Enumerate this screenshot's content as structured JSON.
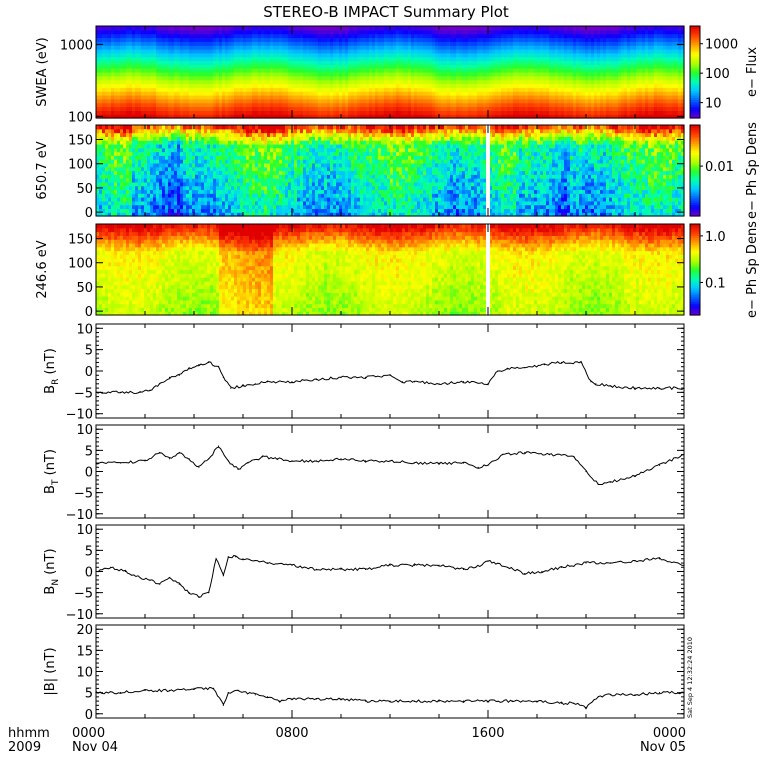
{
  "title": "STEREO-B IMPACT Summary Plot",
  "timestamp": "Sat Sep  4 12:32:24 2010",
  "bottom_axis": {
    "row1_left": "hhmm",
    "row2_left": "2009",
    "ticks": [
      {
        "hour": 0,
        "row1": "0000",
        "row2": "Nov 04"
      },
      {
        "hour": 8,
        "row1": "0800",
        "row2": ""
      },
      {
        "hour": 16,
        "row1": "1600",
        "row2": ""
      },
      {
        "hour": 24,
        "row1": "0000",
        "row2": "Nov 05"
      }
    ]
  },
  "colors": {
    "colormap": [
      "#6f00c8",
      "#0a00ff",
      "#0064ff",
      "#00c8ff",
      "#00ffb4",
      "#28ff28",
      "#b4ff00",
      "#ffff00",
      "#ffa000",
      "#ff4000",
      "#e10000"
    ]
  },
  "chart_data": [
    {
      "type": "heatmap",
      "ylabel": "SWEA (eV)",
      "yscale": "log",
      "ylim": [
        95,
        1800
      ],
      "yticks": [
        {
          "v": 100,
          "label": "100"
        },
        {
          "v": 1000,
          "label": "1000"
        }
      ],
      "xlim": [
        0,
        24
      ],
      "colorbar": {
        "label": "e− Flux",
        "scale": "log",
        "range": [
          3,
          4000
        ],
        "ticks": [
          {
            "v": 10,
            "label": "10"
          },
          {
            "v": 100,
            "label": "100"
          },
          {
            "v": 1000,
            "label": "1000"
          }
        ]
      },
      "pattern": "energy-decreasing"
    },
    {
      "type": "heatmap",
      "ylabel": "650.7 eV",
      "yscale": "linear",
      "ylim": [
        -8,
        180
      ],
      "yticks": [
        {
          "v": 0,
          "label": "0"
        },
        {
          "v": 50,
          "label": "50"
        },
        {
          "v": 100,
          "label": "100"
        },
        {
          "v": 150,
          "label": "150"
        }
      ],
      "xlim": [
        0,
        24
      ],
      "colorbar": {
        "label": "e− Ph Sp Dens",
        "scale": "log",
        "range": [
          0.0008,
          0.08
        ],
        "ticks": [
          {
            "v": 0.01,
            "label": "0.01"
          }
        ]
      },
      "pattern": "pad-high",
      "gap_hour": 16.0
    },
    {
      "type": "heatmap",
      "ylabel": "246.6 eV",
      "yscale": "linear",
      "ylim": [
        -8,
        180
      ],
      "yticks": [
        {
          "v": 0,
          "label": "0"
        },
        {
          "v": 50,
          "label": "50"
        },
        {
          "v": 100,
          "label": "100"
        },
        {
          "v": 150,
          "label": "150"
        }
      ],
      "xlim": [
        0,
        24
      ],
      "colorbar": {
        "label": "e− Ph Sp Dens",
        "scale": "log",
        "range": [
          0.02,
          1.8
        ],
        "ticks": [
          {
            "v": 0.1,
            "label": "0.1"
          },
          {
            "v": 1.0,
            "label": "1.0"
          }
        ]
      },
      "pattern": "pad-low",
      "gap_hour": 16.0
    },
    {
      "type": "line",
      "ylabel": "B",
      "ylabel_sub": "R",
      "ylabel_unit": "(nT)",
      "ylim": [
        -11,
        11
      ],
      "yticks": [
        {
          "v": -10,
          "label": "−10"
        },
        {
          "v": -5,
          "label": "−5"
        },
        {
          "v": 0,
          "label": "0"
        },
        {
          "v": 5,
          "label": "5"
        },
        {
          "v": 10,
          "label": "10"
        }
      ],
      "xlim": [
        0,
        24
      ],
      "x": [
        0,
        1.0,
        1.8,
        2.2,
        2.6,
        3.0,
        3.4,
        3.8,
        4.2,
        4.6,
        5.0,
        5.2,
        5.5,
        6.0,
        6.5,
        7.0,
        8.0,
        9.0,
        10.0,
        11.0,
        12.0,
        12.5,
        13.0,
        14.0,
        15.0,
        16.0,
        16.4,
        16.8,
        17.5,
        18.3,
        19.0,
        19.8,
        20.2,
        20.4,
        21.0,
        22.0,
        23.0,
        24.0
      ],
      "y": [
        -5,
        -5,
        -5,
        -4.5,
        -3,
        -1.5,
        -1,
        0.5,
        1.5,
        2,
        1,
        -1.5,
        -4,
        -3.5,
        -3,
        -2.5,
        -2.5,
        -2,
        -1.5,
        -1.5,
        -1,
        -2.5,
        -2.5,
        -3,
        -2.5,
        -3,
        0,
        0.5,
        0.8,
        1.5,
        2,
        2,
        -2.5,
        -3,
        -3.5,
        -4,
        -4,
        -4
      ]
    },
    {
      "type": "line",
      "ylabel": "B",
      "ylabel_sub": "T",
      "ylabel_unit": "(nT)",
      "ylim": [
        -11,
        11
      ],
      "yticks": [
        {
          "v": -10,
          "label": "−10"
        },
        {
          "v": -5,
          "label": "−5"
        },
        {
          "v": 0,
          "label": "0"
        },
        {
          "v": 5,
          "label": "5"
        },
        {
          "v": 10,
          "label": "10"
        }
      ],
      "xlim": [
        0,
        24
      ],
      "x": [
        0,
        1.0,
        2.0,
        2.6,
        3.0,
        3.4,
        3.8,
        4.2,
        4.6,
        5.0,
        5.4,
        5.8,
        6.2,
        6.8,
        7.4,
        8.0,
        9.0,
        10.0,
        11.0,
        12.0,
        13.0,
        14.0,
        15.0,
        15.6,
        16.0,
        16.6,
        17.5,
        18.5,
        19.5,
        20.0,
        20.5,
        21.0,
        22.0,
        23.0,
        24.0
      ],
      "y": [
        2,
        2,
        2.5,
        4.5,
        3,
        4.5,
        3,
        1,
        3,
        6,
        2.5,
        0.5,
        2,
        3.5,
        3,
        2.5,
        2.5,
        3,
        2.5,
        2.5,
        2,
        2,
        2,
        1,
        1.5,
        4,
        4.5,
        4,
        3.5,
        0,
        -3,
        -2.5,
        -1,
        1.5,
        4
      ]
    },
    {
      "type": "line",
      "ylabel": "B",
      "ylabel_sub": "N",
      "ylabel_unit": "(nT)",
      "ylim": [
        -11,
        11
      ],
      "yticks": [
        {
          "v": -10,
          "label": "−10"
        },
        {
          "v": -5,
          "label": "−5"
        },
        {
          "v": 0,
          "label": "0"
        },
        {
          "v": 5,
          "label": "5"
        },
        {
          "v": 10,
          "label": "10"
        }
      ],
      "xlim": [
        0,
        24
      ],
      "x": [
        0,
        0.6,
        1.2,
        1.8,
        2.2,
        2.6,
        3.0,
        3.4,
        3.8,
        4.2,
        4.6,
        4.9,
        5.2,
        5.4,
        5.7,
        6.0,
        7.0,
        8.0,
        9.0,
        10.0,
        11.0,
        12.0,
        13.0,
        14.0,
        15.0,
        15.5,
        16.0,
        16.8,
        17.5,
        18.2,
        19.0,
        20.0,
        21.0,
        22.0,
        23.0,
        24.0
      ],
      "y": [
        0,
        1,
        0,
        -1.5,
        -2,
        -3,
        -1.5,
        -3,
        -5,
        -6,
        -5,
        3,
        -1,
        3.5,
        3.5,
        3,
        2,
        1.5,
        0.5,
        0.5,
        0.5,
        1.5,
        1.5,
        1.5,
        0.5,
        1,
        2.5,
        1,
        -0.5,
        0,
        1,
        2,
        2,
        2.5,
        3,
        1.5
      ]
    },
    {
      "type": "line",
      "ylabel": "|B|",
      "ylabel_sub": "",
      "ylabel_unit": "(nT)",
      "ylim": [
        -1,
        21
      ],
      "yticks": [
        {
          "v": 0,
          "label": "0"
        },
        {
          "v": 5,
          "label": "5"
        },
        {
          "v": 10,
          "label": "10"
        },
        {
          "v": 15,
          "label": "15"
        },
        {
          "v": 20,
          "label": "20"
        }
      ],
      "xlim": [
        0,
        24
      ],
      "x": [
        0,
        1.0,
        2.0,
        3.0,
        4.0,
        4.8,
        5.2,
        5.4,
        5.8,
        6.5,
        7.0,
        7.5,
        8.0,
        9.0,
        10.0,
        11.0,
        12.0,
        13.0,
        14.0,
        15.0,
        16.0,
        17.0,
        18.0,
        19.0,
        19.5,
        20.0,
        20.5,
        21.0,
        22.0,
        23.0,
        24.0
      ],
      "y": [
        5,
        5,
        5.5,
        5.5,
        6,
        6,
        2,
        5,
        5.5,
        4.5,
        4,
        3,
        3.5,
        3.5,
        3.5,
        3,
        3,
        3,
        3,
        3,
        3,
        3,
        3,
        2.5,
        2.5,
        1.5,
        4,
        4.5,
        4.5,
        5,
        5
      ]
    }
  ]
}
